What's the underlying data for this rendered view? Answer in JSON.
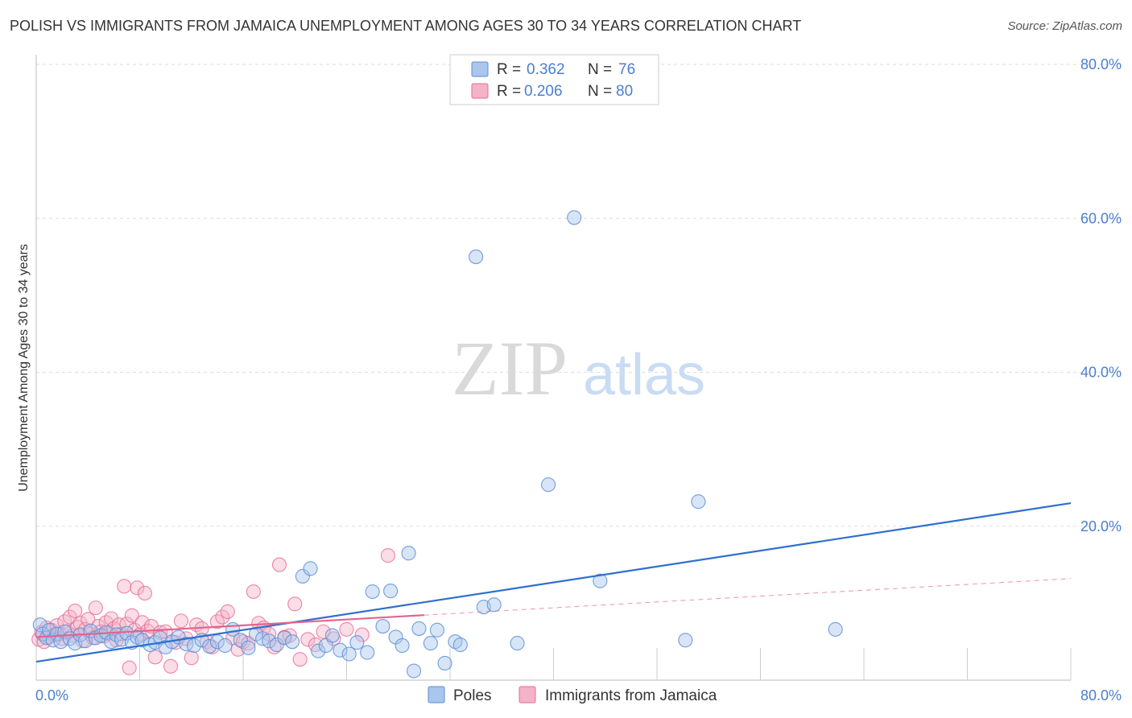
{
  "header": {
    "title": "POLISH VS IMMIGRANTS FROM JAMAICA UNEMPLOYMENT AMONG AGES 30 TO 34 YEARS CORRELATION CHART",
    "source": "Source: ZipAtlas.com"
  },
  "watermark": {
    "zip": "ZIP",
    "atlas": "atlas"
  },
  "legend_box": {
    "rows": [
      {
        "r_label": "R =",
        "r_value": "0.362",
        "n_label": "N =",
        "n_value": "76"
      },
      {
        "r_label": "R =",
        "r_value": "0.206",
        "n_label": "N =",
        "n_value": "80"
      }
    ]
  },
  "colors": {
    "poles": "#5b8fd6",
    "poles_fill": "#a9c6ee",
    "poles_line": "#2f6fcf",
    "jamaica": "#e86a94",
    "jamaica_fill": "#f5b3c8",
    "jamaica_line": "#e4638e",
    "axis_text": "#4a7fd0",
    "grid": "#dddddd"
  },
  "chart_data": {
    "type": "scatter",
    "title": "POLISH VS IMMIGRANTS FROM JAMAICA UNEMPLOYMENT AMONG AGES 30 TO 34 YEARS CORRELATION CHART",
    "xlabel": "",
    "ylabel": "Unemployment Among Ages 30 to 34 years",
    "xlim": [
      0,
      80
    ],
    "ylim": [
      0,
      80
    ],
    "x_tick_labels": [
      "0.0%",
      "80.0%"
    ],
    "y_ticks": [
      20,
      40,
      60,
      80
    ],
    "y_tick_labels": [
      "20.0%",
      "40.0%",
      "60.0%",
      "80.0%"
    ],
    "legend": [
      "Poles",
      "Immigrants from Jamaica"
    ],
    "series": [
      {
        "name": "Poles",
        "r": 0.362,
        "n": 76,
        "trend": {
          "x": [
            0,
            80
          ],
          "y": [
            2.4,
            23.0
          ],
          "dashed_from": null
        },
        "points": [
          [
            0.3,
            7.2
          ],
          [
            0.5,
            6.0
          ],
          [
            0.8,
            5.5
          ],
          [
            1.0,
            6.5
          ],
          [
            1.3,
            5.2
          ],
          [
            1.6,
            6.0
          ],
          [
            1.9,
            5.0
          ],
          [
            2.2,
            6.3
          ],
          [
            2.6,
            5.4
          ],
          [
            3.0,
            4.8
          ],
          [
            3.4,
            5.9
          ],
          [
            3.8,
            5.1
          ],
          [
            4.2,
            6.4
          ],
          [
            4.6,
            5.5
          ],
          [
            5.0,
            5.8
          ],
          [
            5.4,
            6.2
          ],
          [
            5.8,
            5.0
          ],
          [
            6.2,
            5.9
          ],
          [
            6.6,
            5.3
          ],
          [
            7.0,
            6.1
          ],
          [
            7.4,
            4.9
          ],
          [
            7.8,
            5.6
          ],
          [
            8.2,
            5.2
          ],
          [
            8.8,
            4.6
          ],
          [
            9.2,
            4.9
          ],
          [
            9.6,
            5.5
          ],
          [
            10.0,
            4.3
          ],
          [
            10.5,
            5.0
          ],
          [
            11.0,
            5.6
          ],
          [
            11.6,
            4.7
          ],
          [
            12.2,
            4.5
          ],
          [
            12.8,
            5.2
          ],
          [
            13.4,
            4.4
          ],
          [
            14.0,
            5.0
          ],
          [
            14.6,
            4.5
          ],
          [
            15.2,
            6.6
          ],
          [
            15.8,
            5.2
          ],
          [
            16.4,
            4.2
          ],
          [
            17.0,
            6.0
          ],
          [
            17.5,
            5.4
          ],
          [
            18.0,
            5.1
          ],
          [
            18.6,
            4.6
          ],
          [
            19.2,
            5.5
          ],
          [
            19.8,
            5.0
          ],
          [
            20.6,
            13.5
          ],
          [
            21.2,
            14.5
          ],
          [
            21.8,
            3.8
          ],
          [
            22.4,
            4.5
          ],
          [
            22.9,
            5.8
          ],
          [
            23.5,
            3.9
          ],
          [
            24.2,
            3.4
          ],
          [
            24.8,
            4.9
          ],
          [
            25.6,
            3.6
          ],
          [
            26.0,
            11.5
          ],
          [
            26.8,
            7.0
          ],
          [
            27.4,
            11.6
          ],
          [
            27.8,
            5.6
          ],
          [
            28.3,
            4.5
          ],
          [
            28.8,
            16.5
          ],
          [
            29.2,
            1.2
          ],
          [
            29.6,
            6.7
          ],
          [
            30.5,
            4.8
          ],
          [
            31.0,
            6.5
          ],
          [
            31.6,
            2.2
          ],
          [
            32.4,
            5.0
          ],
          [
            32.8,
            4.6
          ],
          [
            34.0,
            55.0
          ],
          [
            34.6,
            9.5
          ],
          [
            35.4,
            9.8
          ],
          [
            37.2,
            4.8
          ],
          [
            39.6,
            25.4
          ],
          [
            41.6,
            60.1
          ],
          [
            43.6,
            12.9
          ],
          [
            50.2,
            5.2
          ],
          [
            51.2,
            23.2
          ],
          [
            61.8,
            6.6
          ]
        ]
      },
      {
        "name": "Immigrants from Jamaica",
        "r": 0.206,
        "n": 80,
        "trend": {
          "x": [
            0,
            80
          ],
          "y": [
            5.6,
            13.2
          ],
          "dashed_from": 30
        },
        "points": [
          [
            0.2,
            5.3
          ],
          [
            0.4,
            6.2
          ],
          [
            0.6,
            5.0
          ],
          [
            0.8,
            6.8
          ],
          [
            1.0,
            5.6
          ],
          [
            1.2,
            6.5
          ],
          [
            1.4,
            5.9
          ],
          [
            1.6,
            7.1
          ],
          [
            1.8,
            6.0
          ],
          [
            2.0,
            5.4
          ],
          [
            2.2,
            7.6
          ],
          [
            2.4,
            6.3
          ],
          [
            2.6,
            8.2
          ],
          [
            2.8,
            5.8
          ],
          [
            3.0,
            9.0
          ],
          [
            3.2,
            6.9
          ],
          [
            3.4,
            7.4
          ],
          [
            3.6,
            5.1
          ],
          [
            3.8,
            6.6
          ],
          [
            4.0,
            7.9
          ],
          [
            4.2,
            6.0
          ],
          [
            4.4,
            5.5
          ],
          [
            4.6,
            9.4
          ],
          [
            4.8,
            7.0
          ],
          [
            5.0,
            6.3
          ],
          [
            5.2,
            5.7
          ],
          [
            5.4,
            7.5
          ],
          [
            5.6,
            6.1
          ],
          [
            5.8,
            8.0
          ],
          [
            6.0,
            6.7
          ],
          [
            6.2,
            5.2
          ],
          [
            6.4,
            7.2
          ],
          [
            6.6,
            6.0
          ],
          [
            6.8,
            12.2
          ],
          [
            7.0,
            7.3
          ],
          [
            7.2,
            1.6
          ],
          [
            7.4,
            8.4
          ],
          [
            7.6,
            6.5
          ],
          [
            7.8,
            12.0
          ],
          [
            8.0,
            5.9
          ],
          [
            8.2,
            7.5
          ],
          [
            8.4,
            11.3
          ],
          [
            8.6,
            6.4
          ],
          [
            8.9,
            7.0
          ],
          [
            9.2,
            3.0
          ],
          [
            9.6,
            6.2
          ],
          [
            10.0,
            6.3
          ],
          [
            10.4,
            1.8
          ],
          [
            10.8,
            4.9
          ],
          [
            11.2,
            7.7
          ],
          [
            11.6,
            5.4
          ],
          [
            12.0,
            2.9
          ],
          [
            12.4,
            7.2
          ],
          [
            12.8,
            6.7
          ],
          [
            13.2,
            5.0
          ],
          [
            13.6,
            4.3
          ],
          [
            14.0,
            7.6
          ],
          [
            14.4,
            8.2
          ],
          [
            14.8,
            8.9
          ],
          [
            15.2,
            5.5
          ],
          [
            15.6,
            4.0
          ],
          [
            16.0,
            5.0
          ],
          [
            16.4,
            4.8
          ],
          [
            16.8,
            11.5
          ],
          [
            17.2,
            7.4
          ],
          [
            17.6,
            6.8
          ],
          [
            18.0,
            6.0
          ],
          [
            18.4,
            4.3
          ],
          [
            18.8,
            15.0
          ],
          [
            19.2,
            5.6
          ],
          [
            19.6,
            5.8
          ],
          [
            20.0,
            9.9
          ],
          [
            20.4,
            2.7
          ],
          [
            21.0,
            5.3
          ],
          [
            21.6,
            4.6
          ],
          [
            22.2,
            6.3
          ],
          [
            23.0,
            5.4
          ],
          [
            24.0,
            6.6
          ],
          [
            25.2,
            5.9
          ],
          [
            27.2,
            16.2
          ]
        ]
      }
    ]
  }
}
